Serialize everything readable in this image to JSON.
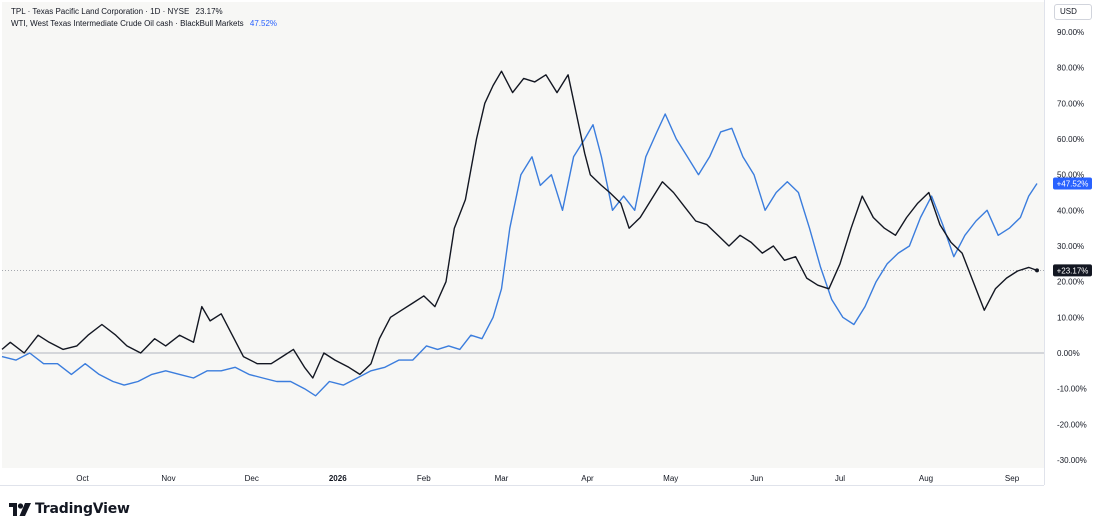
{
  "legend": {
    "series1_text": "TPL · Texas Pacific Land Corporation · 1D · NYSE",
    "series1_value": "23.17%",
    "series2_text": "WTI, West Texas Intermediate Crude Oil cash · BlackBull Markets",
    "series2_value": "47.52%"
  },
  "currency_label": "USD",
  "brand": {
    "name": "TradingView"
  },
  "colors": {
    "tpl": "#131722",
    "wti": "#3b7ddd",
    "wti_badge": "#2962ff",
    "tpl_badge": "#131722",
    "zero_line": "#b2b5be",
    "axis_text": "#131722"
  },
  "chart_data": {
    "type": "line",
    "y_unit": "percent change",
    "ylim": [
      -33,
      92
    ],
    "y_ticks": [
      "90.00%",
      "80.00%",
      "70.00%",
      "60.00%",
      "50.00%",
      "40.00%",
      "30.00%",
      "20.00%",
      "10.00%",
      "0.00%",
      "-10.00%",
      "-20.00%",
      "-30.00%"
    ],
    "y_tick_values": [
      90,
      80,
      70,
      60,
      50,
      40,
      30,
      20,
      10,
      0,
      -10,
      -20,
      -30
    ],
    "x_tick_labels": [
      "Oct",
      "Nov",
      "Dec",
      "2026",
      "Feb",
      "Mar",
      "Apr",
      "May",
      "Jun",
      "Jul",
      "Aug",
      "Sep"
    ],
    "x_tick_dates": [
      "2025-10-01",
      "2025-11-01",
      "2025-12-01",
      "2026-01-01",
      "2026-02-01",
      "2026-03-01",
      "2026-04-01",
      "2026-05-01",
      "2026-06-01",
      "2026-07-01",
      "2026-08-01",
      "2026-09-01"
    ],
    "x_range": [
      "2025-09-02",
      "2026-09-10"
    ],
    "grid": false,
    "series": [
      {
        "name": "TPL · Texas Pacific Land Corporation · 1D · NYSE",
        "last_value_label": "+23.17%",
        "points": [
          [
            "2025-09-02",
            1
          ],
          [
            "2025-09-05",
            3
          ],
          [
            "2025-09-10",
            0
          ],
          [
            "2025-09-15",
            5
          ],
          [
            "2025-09-19",
            3
          ],
          [
            "2025-09-24",
            1
          ],
          [
            "2025-09-29",
            2
          ],
          [
            "2025-10-03",
            5
          ],
          [
            "2025-10-08",
            8
          ],
          [
            "2025-10-13",
            5
          ],
          [
            "2025-10-17",
            2
          ],
          [
            "2025-10-22",
            0
          ],
          [
            "2025-10-27",
            4
          ],
          [
            "2025-10-31",
            2
          ],
          [
            "2025-11-05",
            5
          ],
          [
            "2025-11-10",
            3
          ],
          [
            "2025-11-13",
            13
          ],
          [
            "2025-11-16",
            9
          ],
          [
            "2025-11-20",
            11
          ],
          [
            "2025-11-24",
            5
          ],
          [
            "2025-11-28",
            -1
          ],
          [
            "2025-12-03",
            -3
          ],
          [
            "2025-12-08",
            -3
          ],
          [
            "2025-12-12",
            -1
          ],
          [
            "2025-12-16",
            1
          ],
          [
            "2025-12-20",
            -4
          ],
          [
            "2025-12-23",
            -7
          ],
          [
            "2025-12-27",
            0
          ],
          [
            "2025-12-31",
            -2
          ],
          [
            "2026-01-05",
            -4
          ],
          [
            "2026-01-09",
            -6
          ],
          [
            "2026-01-13",
            -3
          ],
          [
            "2026-01-16",
            4
          ],
          [
            "2026-01-20",
            10
          ],
          [
            "2026-01-24",
            12
          ],
          [
            "2026-01-28",
            14
          ],
          [
            "2026-02-01",
            16
          ],
          [
            "2026-02-05",
            13
          ],
          [
            "2026-02-09",
            20
          ],
          [
            "2026-02-12",
            35
          ],
          [
            "2026-02-16",
            43
          ],
          [
            "2026-02-20",
            60
          ],
          [
            "2026-02-23",
            70
          ],
          [
            "2026-02-26",
            75
          ],
          [
            "2026-03-01",
            79
          ],
          [
            "2026-03-05",
            73
          ],
          [
            "2026-03-09",
            77
          ],
          [
            "2026-03-13",
            76
          ],
          [
            "2026-03-17",
            78
          ],
          [
            "2026-03-21",
            73
          ],
          [
            "2026-03-25",
            78
          ],
          [
            "2026-03-28",
            67
          ],
          [
            "2026-03-31",
            56
          ],
          [
            "2026-04-02",
            50
          ],
          [
            "2026-04-06",
            47
          ],
          [
            "2026-04-09",
            45
          ],
          [
            "2026-04-13",
            42
          ],
          [
            "2026-04-16",
            35
          ],
          [
            "2026-04-20",
            38
          ],
          [
            "2026-04-24",
            43
          ],
          [
            "2026-04-28",
            48
          ],
          [
            "2026-05-02",
            45
          ],
          [
            "2026-05-06",
            41
          ],
          [
            "2026-05-10",
            37
          ],
          [
            "2026-05-14",
            36
          ],
          [
            "2026-05-18",
            33
          ],
          [
            "2026-05-22",
            30
          ],
          [
            "2026-05-26",
            33
          ],
          [
            "2026-05-30",
            31
          ],
          [
            "2026-06-03",
            28
          ],
          [
            "2026-06-07",
            30
          ],
          [
            "2026-06-11",
            26
          ],
          [
            "2026-06-15",
            27
          ],
          [
            "2026-06-19",
            21
          ],
          [
            "2026-06-23",
            19
          ],
          [
            "2026-06-27",
            18
          ],
          [
            "2026-07-01",
            25
          ],
          [
            "2026-07-05",
            35
          ],
          [
            "2026-07-09",
            44
          ],
          [
            "2026-07-13",
            38
          ],
          [
            "2026-07-17",
            35
          ],
          [
            "2026-07-21",
            33
          ],
          [
            "2026-07-25",
            38
          ],
          [
            "2026-07-29",
            42
          ],
          [
            "2026-08-02",
            45
          ],
          [
            "2026-08-06",
            36
          ],
          [
            "2026-08-10",
            31
          ],
          [
            "2026-08-14",
            28
          ],
          [
            "2026-08-18",
            20
          ],
          [
            "2026-08-22",
            12
          ],
          [
            "2026-08-26",
            18
          ],
          [
            "2026-08-30",
            21
          ],
          [
            "2026-09-03",
            23
          ],
          [
            "2026-09-07",
            24
          ],
          [
            "2026-09-10",
            23.17
          ]
        ]
      },
      {
        "name": "WTI, West Texas Intermediate Crude Oil cash · BlackBull Markets",
        "last_value_label": "+47.52%",
        "points": [
          [
            "2025-09-02",
            -1
          ],
          [
            "2025-09-07",
            -2
          ],
          [
            "2025-09-12",
            0
          ],
          [
            "2025-09-17",
            -3
          ],
          [
            "2025-09-22",
            -3
          ],
          [
            "2025-09-27",
            -6
          ],
          [
            "2025-10-02",
            -3
          ],
          [
            "2025-10-07",
            -6
          ],
          [
            "2025-10-12",
            -8
          ],
          [
            "2025-10-16",
            -9
          ],
          [
            "2025-10-21",
            -8
          ],
          [
            "2025-10-26",
            -6
          ],
          [
            "2025-10-31",
            -5
          ],
          [
            "2025-11-05",
            -6
          ],
          [
            "2025-11-10",
            -7
          ],
          [
            "2025-11-15",
            -5
          ],
          [
            "2025-11-20",
            -5
          ],
          [
            "2025-11-25",
            -4
          ],
          [
            "2025-11-30",
            -6
          ],
          [
            "2025-12-05",
            -7
          ],
          [
            "2025-12-10",
            -8
          ],
          [
            "2025-12-15",
            -8
          ],
          [
            "2025-12-20",
            -10
          ],
          [
            "2025-12-24",
            -12
          ],
          [
            "2025-12-29",
            -8
          ],
          [
            "2026-01-03",
            -9
          ],
          [
            "2026-01-08",
            -7
          ],
          [
            "2026-01-13",
            -5
          ],
          [
            "2026-01-18",
            -4
          ],
          [
            "2026-01-23",
            -2
          ],
          [
            "2026-01-28",
            -2
          ],
          [
            "2026-02-02",
            2
          ],
          [
            "2026-02-06",
            1
          ],
          [
            "2026-02-10",
            2
          ],
          [
            "2026-02-14",
            1
          ],
          [
            "2026-02-18",
            5
          ],
          [
            "2026-02-22",
            4
          ],
          [
            "2026-02-26",
            10
          ],
          [
            "2026-03-01",
            18
          ],
          [
            "2026-03-04",
            35
          ],
          [
            "2026-03-08",
            50
          ],
          [
            "2026-03-12",
            55
          ],
          [
            "2026-03-15",
            47
          ],
          [
            "2026-03-19",
            50
          ],
          [
            "2026-03-23",
            40
          ],
          [
            "2026-03-27",
            55
          ],
          [
            "2026-03-31",
            60
          ],
          [
            "2026-04-03",
            64
          ],
          [
            "2026-04-06",
            55
          ],
          [
            "2026-04-10",
            40
          ],
          [
            "2026-04-14",
            44
          ],
          [
            "2026-04-18",
            40
          ],
          [
            "2026-04-22",
            55
          ],
          [
            "2026-04-26",
            62
          ],
          [
            "2026-04-29",
            67
          ],
          [
            "2026-05-03",
            60
          ],
          [
            "2026-05-07",
            55
          ],
          [
            "2026-05-11",
            50
          ],
          [
            "2026-05-15",
            55
          ],
          [
            "2026-05-19",
            62
          ],
          [
            "2026-05-23",
            63
          ],
          [
            "2026-05-27",
            55
          ],
          [
            "2026-05-31",
            50
          ],
          [
            "2026-06-04",
            40
          ],
          [
            "2026-06-08",
            45
          ],
          [
            "2026-06-12",
            48
          ],
          [
            "2026-06-16",
            45
          ],
          [
            "2026-06-20",
            35
          ],
          [
            "2026-06-24",
            24
          ],
          [
            "2026-06-28",
            15
          ],
          [
            "2026-07-02",
            10
          ],
          [
            "2026-07-06",
            8
          ],
          [
            "2026-07-10",
            13
          ],
          [
            "2026-07-14",
            20
          ],
          [
            "2026-07-18",
            25
          ],
          [
            "2026-07-22",
            28
          ],
          [
            "2026-07-26",
            30
          ],
          [
            "2026-07-30",
            38
          ],
          [
            "2026-08-03",
            44
          ],
          [
            "2026-08-07",
            36
          ],
          [
            "2026-08-11",
            27
          ],
          [
            "2026-08-15",
            33
          ],
          [
            "2026-08-19",
            37
          ],
          [
            "2026-08-23",
            40
          ],
          [
            "2026-08-27",
            33
          ],
          [
            "2026-08-31",
            35
          ],
          [
            "2026-09-04",
            38
          ],
          [
            "2026-09-07",
            44
          ],
          [
            "2026-09-10",
            47.52
          ]
        ]
      }
    ]
  }
}
